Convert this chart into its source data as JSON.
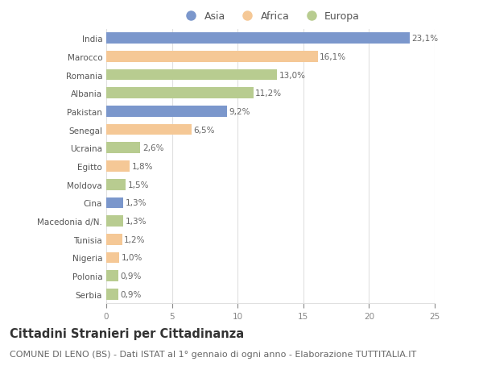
{
  "countries": [
    "India",
    "Marocco",
    "Romania",
    "Albania",
    "Pakistan",
    "Senegal",
    "Ucraina",
    "Egitto",
    "Moldova",
    "Cina",
    "Macedonia d/N.",
    "Tunisia",
    "Nigeria",
    "Polonia",
    "Serbia"
  ],
  "values": [
    23.1,
    16.1,
    13.0,
    11.2,
    9.2,
    6.5,
    2.6,
    1.8,
    1.5,
    1.3,
    1.3,
    1.2,
    1.0,
    0.9,
    0.9
  ],
  "labels": [
    "23,1%",
    "16,1%",
    "13,0%",
    "11,2%",
    "9,2%",
    "6,5%",
    "2,6%",
    "1,8%",
    "1,5%",
    "1,3%",
    "1,3%",
    "1,2%",
    "1,0%",
    "0,9%",
    "0,9%"
  ],
  "continents": [
    "Asia",
    "Africa",
    "Europa",
    "Europa",
    "Asia",
    "Africa",
    "Europa",
    "Africa",
    "Europa",
    "Asia",
    "Europa",
    "Africa",
    "Africa",
    "Europa",
    "Europa"
  ],
  "colors": {
    "Asia": "#7b97cc",
    "Africa": "#f5c896",
    "Europa": "#b8cc90"
  },
  "legend_labels": [
    "Asia",
    "Africa",
    "Europa"
  ],
  "title": "Cittadini Stranieri per Cittadinanza",
  "subtitle": "COMUNE DI LENO (BS) - Dati ISTAT al 1° gennaio di ogni anno - Elaborazione TUTTITALIA.IT",
  "xlim": [
    0,
    25
  ],
  "xticks": [
    0,
    5,
    10,
    15,
    20,
    25
  ],
  "fig_background": "#ffffff",
  "plot_background": "#ffffff",
  "grid_color": "#e0e0e0",
  "title_fontsize": 10.5,
  "subtitle_fontsize": 8,
  "label_fontsize": 7.5,
  "tick_fontsize": 7.5,
  "legend_fontsize": 9
}
